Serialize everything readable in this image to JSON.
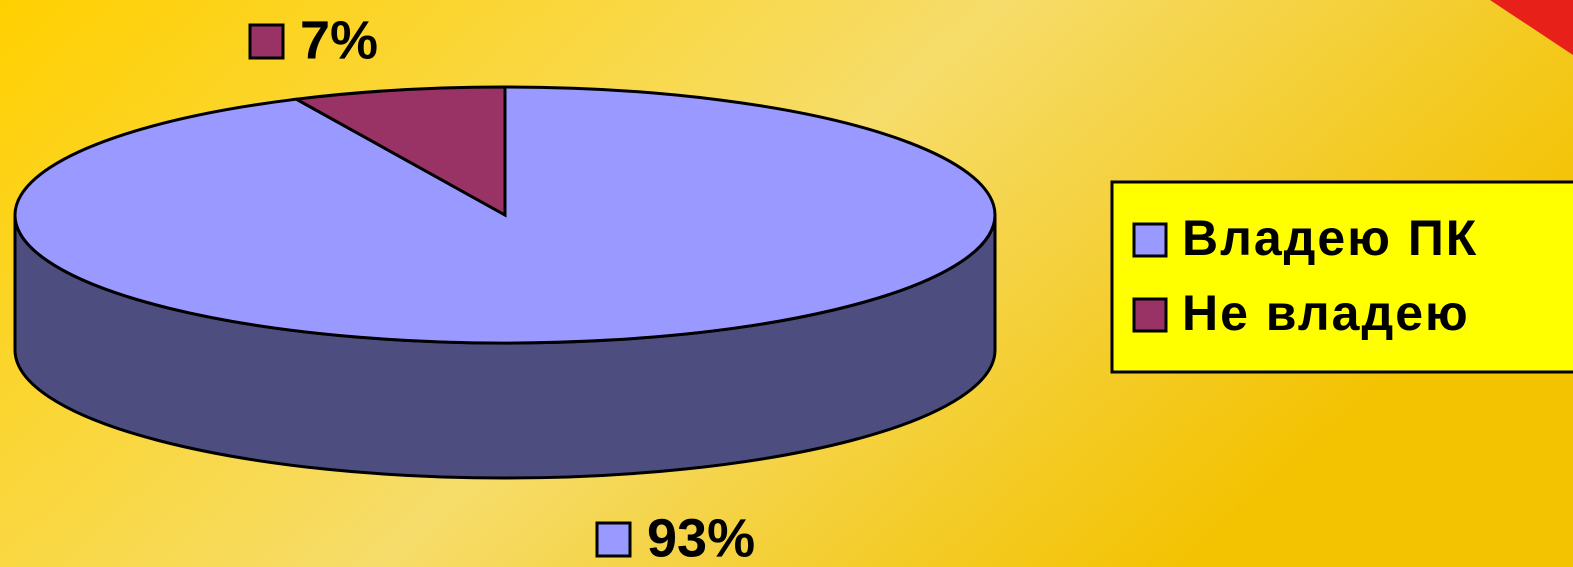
{
  "chart_data": {
    "type": "pie",
    "categories": [
      "Владею ПК",
      "Не владею"
    ],
    "values": [
      93,
      7
    ],
    "value_labels": [
      "93%",
      "7%"
    ],
    "colors": [
      "#9999ff",
      "#993366"
    ],
    "legend": "right"
  }
}
